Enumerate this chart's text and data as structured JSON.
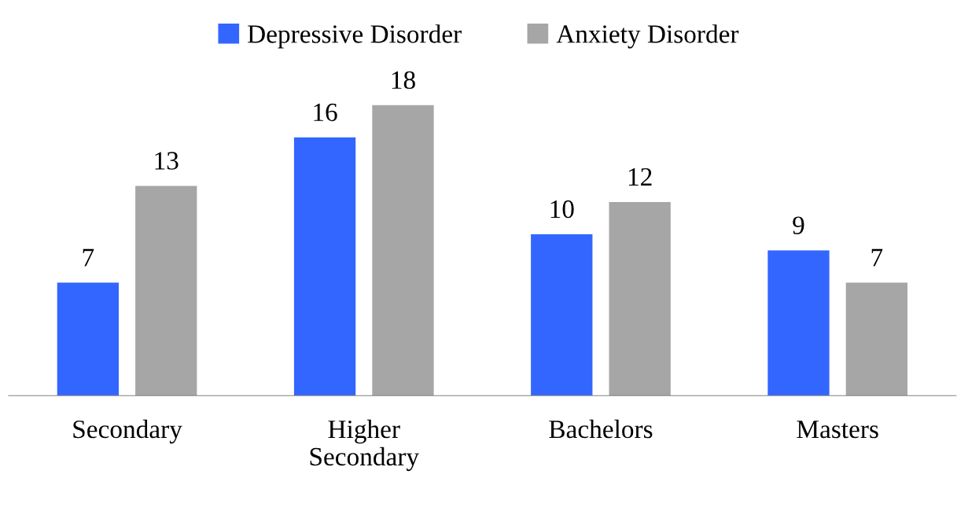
{
  "chart_data": {
    "type": "bar",
    "categories": [
      "Secondary",
      "Higher\nSecondary",
      "Bachelors",
      "Masters"
    ],
    "series": [
      {
        "name": "Depressive Disorder",
        "color": "#3366ff",
        "values": [
          7,
          16,
          10,
          9
        ]
      },
      {
        "name": "Anxiety Disorder",
        "color": "#a6a6a6",
        "values": [
          13,
          18,
          12,
          7
        ]
      }
    ],
    "data_labels": true,
    "legend": "top",
    "grid": false,
    "tick_labels": "x"
  }
}
